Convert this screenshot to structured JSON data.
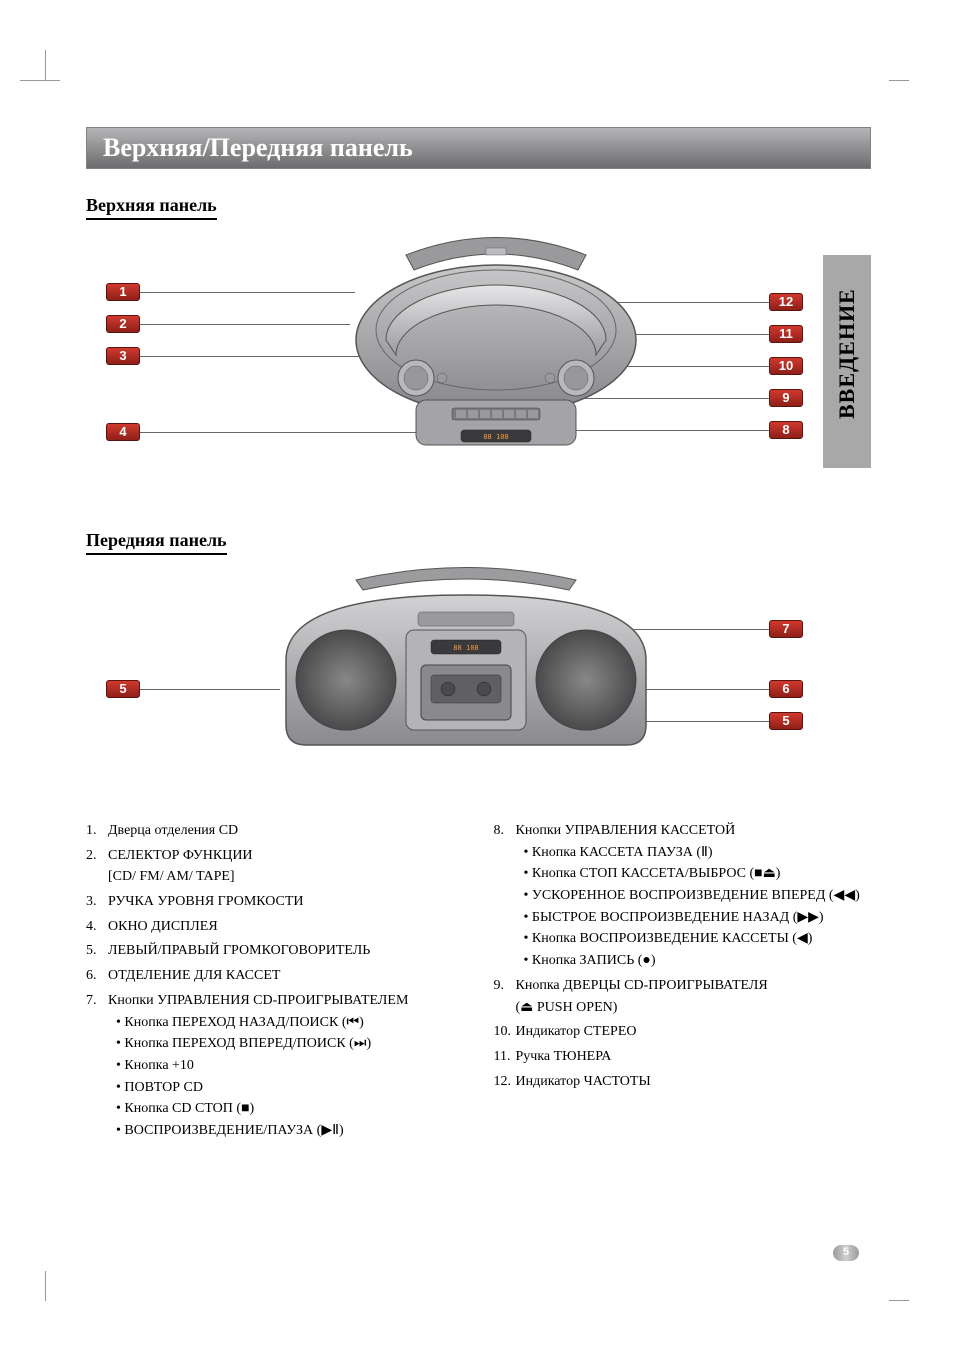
{
  "title": "Верхняя/Передняя панель",
  "section_top": "Верхняя панель",
  "section_front": "Передняя панель",
  "side_tab": "ВВЕДЕНИЕ",
  "page_number": "5",
  "callouts": {
    "c1": "1",
    "c2": "2",
    "c3": "3",
    "c4": "4",
    "c5": "5",
    "c6": "6",
    "c7": "7",
    "c8": "8",
    "c9": "9",
    "c10": "10",
    "c11": "11",
    "c12": "12"
  },
  "list_left": [
    {
      "n": "1.",
      "text": "Дверца отделения CD",
      "sub": []
    },
    {
      "n": "2.",
      "text": "СЕЛЕКТОР ФУНКЦИИ",
      "note": "[CD/ FM/ AM/ TAPE]",
      "sub": []
    },
    {
      "n": "3.",
      "text": "РУЧКА УРОВНЯ ГРОМКОСТИ",
      "sub": []
    },
    {
      "n": "4.",
      "text": "ОКНО ДИСПЛЕЯ",
      "sub": []
    },
    {
      "n": "5.",
      "text": "ЛЕВЫЙ/ПРАВЫЙ ГРОМКОГОВОРИТЕЛЬ",
      "sub": []
    },
    {
      "n": "6.",
      "text": "ОТДЕЛЕНИЕ ДЛЯ КАССЕТ",
      "sub": []
    },
    {
      "n": "7.",
      "text": "Кнопки УПРАВЛЕНИЯ CD-ПРОИГРЫВАТЕЛЕМ",
      "sub": [
        "Кнопка ПЕРЕХОД НАЗАД/ПОИСК (⏮)",
        "Кнопка ПЕРЕХОД ВПЕРЕД/ПОИСК (⏭)",
        "Кнопка +10",
        "ПОВТОР CD",
        "Кнопка CD СТОП (■)",
        "ВОСПРОИЗВЕДЕНИЕ/ПАУЗА (▶Ⅱ)"
      ]
    }
  ],
  "list_right": [
    {
      "n": "8.",
      "text": "Кнопки УПРАВЛЕНИЯ КАССЕТОЙ",
      "sub": [
        "Кнопка КАССЕТА ПАУЗА (Ⅱ)",
        "Кнопка СТОП КАССЕТА/ВЫБРОС (■⏏)",
        "УСКОРЕННОЕ ВОСПРОИЗВЕДЕНИЕ ВПЕРЕД (◀◀)",
        "БЫСТРОЕ ВОСПРОИЗВЕДЕНИЕ НАЗАД (▶▶)",
        "Кнопка ВОСПРОИЗВЕДЕНИЕ КАССЕТЫ (◀)",
        "Кнопка ЗАПИСЬ (●)"
      ]
    },
    {
      "n": "9.",
      "text": "Кнопка ДВЕРЦЫ CD-ПРОИГРЫВАТЕЛЯ",
      "note": "(⏏ PUSH OPEN)",
      "sub": []
    },
    {
      "n": "10.",
      "text": "Индикатор СТЕРЕО",
      "sub": []
    },
    {
      "n": "11.",
      "text": "Ручка ТЮНЕРА",
      "sub": []
    },
    {
      "n": "12.",
      "text": "Индикатор ЧАСТОТЫ",
      "sub": []
    }
  ],
  "colors": {
    "title_grad_top": "#b5b5b7",
    "title_grad_bot": "#6c6c6e",
    "callout_grad_top": "#d0392e",
    "callout_grad_bot": "#8f1f18",
    "sidetab_bg": "#a8a8a8",
    "text": "#000000",
    "background": "#ffffff"
  }
}
